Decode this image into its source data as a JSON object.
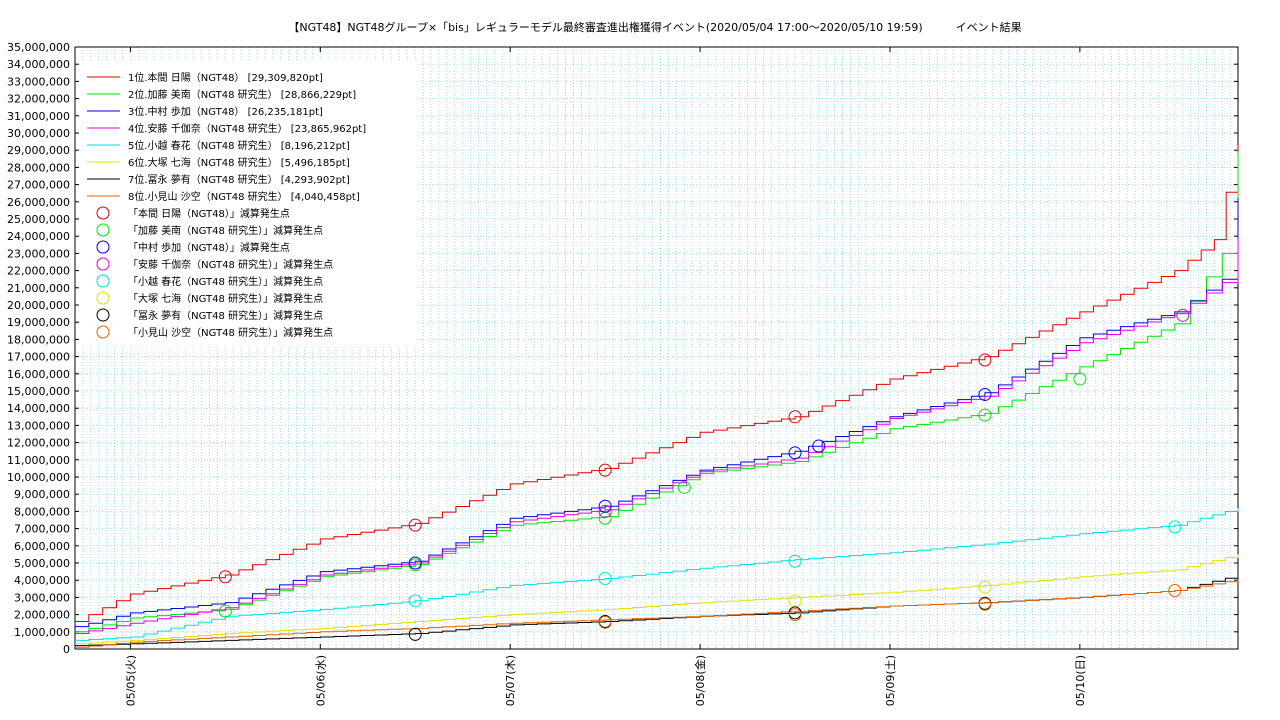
{
  "chart_data": {
    "type": "line",
    "title": "【NGT48】NGT48グループ×「bis」レギュラーモデル最終審査進出権獲得イベント(2020/05/04 17:00～2020/05/10 19:59)　　　イベント結果",
    "xlabel": "",
    "ylabel": "",
    "grid": true,
    "legend_position": "top-left",
    "ylim": [
      0,
      35000000
    ],
    "xlim": [
      "2020-05-04 17:00",
      "2020-05-10 19:59"
    ],
    "y_ticks": [
      "0",
      "1,000,000",
      "2,000,000",
      "3,000,000",
      "4,000,000",
      "5,000,000",
      "6,000,000",
      "7,000,000",
      "8,000,000",
      "9,000,000",
      "10,000,000",
      "11,000,000",
      "12,000,000",
      "13,000,000",
      "14,000,000",
      "15,000,000",
      "16,000,000",
      "17,000,000",
      "18,000,000",
      "19,000,000",
      "20,000,000",
      "21,000,000",
      "22,000,000",
      "23,000,000",
      "24,000,000",
      "25,000,000",
      "26,000,000",
      "27,000,000",
      "28,000,000",
      "29,000,000",
      "30,000,000",
      "31,000,000",
      "32,000,000",
      "33,000,000",
      "34,000,000",
      "35,000,000"
    ],
    "x_ticks": [
      {
        "label": "05/05(火)",
        "t": "2020-05-05 00:00"
      },
      {
        "label": "05/06(水)",
        "t": "2020-05-06 00:00"
      },
      {
        "label": "05/07(木)",
        "t": "2020-05-07 00:00"
      },
      {
        "label": "05/08(金)",
        "t": "2020-05-08 00:00"
      },
      {
        "label": "05/09(土)",
        "t": "2020-05-09 00:00"
      },
      {
        "label": "05/10(日)",
        "t": "2020-05-10 00:00"
      }
    ],
    "series": [
      {
        "name": "1位.本間 日陽（NGT48） [29,309,820pt]",
        "color": "#e00000",
        "points": [
          [
            "2020-05-04 17:00",
            1600000
          ],
          [
            "2020-05-05 00:00",
            3200000
          ],
          [
            "2020-05-05 12:00",
            4300000
          ],
          [
            "2020-05-06 00:00",
            6400000
          ],
          [
            "2020-05-06 12:00",
            7300000
          ],
          [
            "2020-05-07 00:00",
            9600000
          ],
          [
            "2020-05-07 12:00",
            10500000
          ],
          [
            "2020-05-08 00:00",
            12600000
          ],
          [
            "2020-05-08 12:00",
            13500000
          ],
          [
            "2020-05-09 00:00",
            15700000
          ],
          [
            "2020-05-09 12:00",
            17000000
          ],
          [
            "2020-05-10 00:00",
            19600000
          ],
          [
            "2020-05-10 12:00",
            22000000
          ],
          [
            "2020-05-10 17:00",
            23800000
          ],
          [
            "2020-05-10 19:59",
            29309820
          ]
        ]
      },
      {
        "name": "2位.加藤 美南（NGT48 研究生） [28,866,229pt]",
        "color": "#00e000",
        "points": [
          [
            "2020-05-04 17:00",
            1000000
          ],
          [
            "2020-05-05 00:00",
            1800000
          ],
          [
            "2020-05-05 12:00",
            2300000
          ],
          [
            "2020-05-06 00:00",
            4200000
          ],
          [
            "2020-05-06 12:00",
            4900000
          ],
          [
            "2020-05-07 00:00",
            7200000
          ],
          [
            "2020-05-07 12:00",
            7700000
          ],
          [
            "2020-05-08 00:00",
            10200000
          ],
          [
            "2020-05-08 12:00",
            10900000
          ],
          [
            "2020-05-09 00:00",
            12800000
          ],
          [
            "2020-05-09 12:00",
            13700000
          ],
          [
            "2020-05-10 00:00",
            16400000
          ],
          [
            "2020-05-10 12:00",
            18900000
          ],
          [
            "2020-05-10 18:00",
            23000000
          ],
          [
            "2020-05-10 19:59",
            28866229
          ]
        ]
      },
      {
        "name": "3位.中村 歩加（NGT48） [26,235,181pt]",
        "color": "#0000e0",
        "points": [
          [
            "2020-05-04 17:00",
            1300000
          ],
          [
            "2020-05-05 00:00",
            2100000
          ],
          [
            "2020-05-05 12:00",
            2700000
          ],
          [
            "2020-05-06 00:00",
            4500000
          ],
          [
            "2020-05-06 12:00",
            5100000
          ],
          [
            "2020-05-07 00:00",
            7600000
          ],
          [
            "2020-05-07 12:00",
            8300000
          ],
          [
            "2020-05-08 00:00",
            10400000
          ],
          [
            "2020-05-08 12:00",
            11500000
          ],
          [
            "2020-05-09 00:00",
            13500000
          ],
          [
            "2020-05-09 12:00",
            14900000
          ],
          [
            "2020-05-10 00:00",
            18100000
          ],
          [
            "2020-05-10 12:00",
            19600000
          ],
          [
            "2020-05-10 18:00",
            21500000
          ],
          [
            "2020-05-10 19:59",
            26235181
          ]
        ]
      },
      {
        "name": "4位.安藤 千伽奈（NGT48 研究生） [23,865,962pt]",
        "color": "#e000e0",
        "points": [
          [
            "2020-05-04 17:00",
            900000
          ],
          [
            "2020-05-05 00:00",
            1500000
          ],
          [
            "2020-05-05 12:00",
            2400000
          ],
          [
            "2020-05-06 00:00",
            4300000
          ],
          [
            "2020-05-06 12:00",
            5000000
          ],
          [
            "2020-05-07 00:00",
            7400000
          ],
          [
            "2020-05-07 12:00",
            8100000
          ],
          [
            "2020-05-08 00:00",
            10300000
          ],
          [
            "2020-05-08 12:00",
            11100000
          ],
          [
            "2020-05-09 00:00",
            13400000
          ],
          [
            "2020-05-09 12:00",
            14700000
          ],
          [
            "2020-05-10 00:00",
            17800000
          ],
          [
            "2020-05-10 12:00",
            19500000
          ],
          [
            "2020-05-10 18:00",
            21300000
          ],
          [
            "2020-05-10 19:59",
            23865962
          ]
        ]
      },
      {
        "name": "5位.小越 春花（NGT48 研究生） [8,196,212pt]",
        "color": "#00e0e0",
        "points": [
          [
            "2020-05-04 17:00",
            500000
          ],
          [
            "2020-05-05 00:00",
            700000
          ],
          [
            "2020-05-05 12:00",
            1900000
          ],
          [
            "2020-05-06 00:00",
            2300000
          ],
          [
            "2020-05-06 12:00",
            2800000
          ],
          [
            "2020-05-07 00:00",
            3700000
          ],
          [
            "2020-05-07 12:00",
            4100000
          ],
          [
            "2020-05-08 00:00",
            4700000
          ],
          [
            "2020-05-08 12:00",
            5200000
          ],
          [
            "2020-05-09 00:00",
            5600000
          ],
          [
            "2020-05-09 12:00",
            6100000
          ],
          [
            "2020-05-10 00:00",
            6700000
          ],
          [
            "2020-05-10 12:00",
            7200000
          ],
          [
            "2020-05-10 19:59",
            8196212
          ]
        ]
      },
      {
        "name": "6位.大塚 七海（NGT48 研究生） [5,496,185pt]",
        "color": "#e0e000",
        "points": [
          [
            "2020-05-04 17:00",
            300000
          ],
          [
            "2020-05-05 00:00",
            500000
          ],
          [
            "2020-05-05 12:00",
            900000
          ],
          [
            "2020-05-06 00:00",
            1200000
          ],
          [
            "2020-05-06 12:00",
            1600000
          ],
          [
            "2020-05-07 00:00",
            2000000
          ],
          [
            "2020-05-07 12:00",
            2300000
          ],
          [
            "2020-05-08 00:00",
            2700000
          ],
          [
            "2020-05-08 12:00",
            3000000
          ],
          [
            "2020-05-09 00:00",
            3300000
          ],
          [
            "2020-05-09 12:00",
            3700000
          ],
          [
            "2020-05-10 00:00",
            4200000
          ],
          [
            "2020-05-10 12:00",
            4600000
          ],
          [
            "2020-05-10 19:59",
            5496185
          ]
        ]
      },
      {
        "name": "7位.冨永 夢有（NGT48 研究生） [4,293,902pt]",
        "color": "#000000",
        "points": [
          [
            "2020-05-04 17:00",
            200000
          ],
          [
            "2020-05-05 00:00",
            300000
          ],
          [
            "2020-05-05 12:00",
            500000
          ],
          [
            "2020-05-06 00:00",
            700000
          ],
          [
            "2020-05-06 12:00",
            900000
          ],
          [
            "2020-05-07 00:00",
            1400000
          ],
          [
            "2020-05-07 12:00",
            1600000
          ],
          [
            "2020-05-08 00:00",
            1900000
          ],
          [
            "2020-05-08 12:00",
            2100000
          ],
          [
            "2020-05-09 00:00",
            2500000
          ],
          [
            "2020-05-09 12:00",
            2700000
          ],
          [
            "2020-05-10 00:00",
            3000000
          ],
          [
            "2020-05-10 12:00",
            3400000
          ],
          [
            "2020-05-10 19:59",
            4293902
          ]
        ]
      },
      {
        "name": "8位.小見山 沙空（NGT48 研究生） [4,040,458pt]",
        "color": "#e06000",
        "points": [
          [
            "2020-05-04 17:00",
            100000
          ],
          [
            "2020-05-05 00:00",
            400000
          ],
          [
            "2020-05-05 12:00",
            700000
          ],
          [
            "2020-05-06 00:00",
            1000000
          ],
          [
            "2020-05-06 12:00",
            1200000
          ],
          [
            "2020-05-07 00:00",
            1500000
          ],
          [
            "2020-05-07 12:00",
            1700000
          ],
          [
            "2020-05-08 00:00",
            1900000
          ],
          [
            "2020-05-08 12:00",
            2200000
          ],
          [
            "2020-05-09 00:00",
            2500000
          ],
          [
            "2020-05-09 12:00",
            2700000
          ],
          [
            "2020-05-10 00:00",
            3000000
          ],
          [
            "2020-05-10 12:00",
            3400000
          ],
          [
            "2020-05-10 19:59",
            4040458
          ]
        ]
      }
    ],
    "markers": [
      {
        "name": "「本間 日陽（NGT48）」減算発生点",
        "color": "#e00000",
        "points": [
          [
            "2020-05-05 12:00",
            4200000
          ],
          [
            "2020-05-06 12:00",
            7200000
          ],
          [
            "2020-05-07 12:00",
            10400000
          ],
          [
            "2020-05-08 12:00",
            13500000
          ],
          [
            "2020-05-09 12:00",
            16800000
          ]
        ]
      },
      {
        "name": "「加藤 美南（NGT48 研究生）」減算発生点",
        "color": "#00e000",
        "points": [
          [
            "2020-05-05 12:00",
            2200000
          ],
          [
            "2020-05-06 12:00",
            4900000
          ],
          [
            "2020-05-07 12:00",
            7600000
          ],
          [
            "2020-05-07 22:00",
            9400000
          ],
          [
            "2020-05-09 12:00",
            13600000
          ],
          [
            "2020-05-10 00:00",
            15700000
          ]
        ]
      },
      {
        "name": "「中村 歩加（NGT48）」減算発生点",
        "color": "#0000e0",
        "points": [
          [
            "2020-05-06 12:00",
            5000000
          ],
          [
            "2020-05-07 12:00",
            8300000
          ],
          [
            "2020-05-08 12:00",
            11400000
          ],
          [
            "2020-05-08 15:00",
            11800000
          ],
          [
            "2020-05-09 12:00",
            14800000
          ]
        ]
      },
      {
        "name": "「安藤 千伽奈（NGT48 研究生）」減算発生点",
        "color": "#e000e0",
        "points": [
          [
            "2020-05-07 12:00",
            8000000
          ],
          [
            "2020-05-10 13:00",
            19400000
          ]
        ]
      },
      {
        "name": "「小越 春花（NGT48 研究生）」減算発生点",
        "color": "#00e0e0",
        "points": [
          [
            "2020-05-06 12:00",
            2800000
          ],
          [
            "2020-05-07 12:00",
            4100000
          ],
          [
            "2020-05-08 12:00",
            5100000
          ],
          [
            "2020-05-10 12:00",
            7100000
          ]
        ]
      },
      {
        "name": "「大塚 七海（NGT48 研究生）」減算発生点",
        "color": "#e0e000",
        "points": [
          [
            "2020-05-08 12:00",
            2800000
          ],
          [
            "2020-05-09 12:00",
            3600000
          ]
        ]
      },
      {
        "name": "「冨永 夢有（NGT48 研究生）」減算発生点",
        "color": "#000000",
        "points": [
          [
            "2020-05-06 12:00",
            850000
          ],
          [
            "2020-05-07 12:00",
            1600000
          ],
          [
            "2020-05-08 12:00",
            2100000
          ],
          [
            "2020-05-09 12:00",
            2650000
          ]
        ]
      },
      {
        "name": "「小見山 沙空（NGT48 研究生）」減算発生点",
        "color": "#e06000",
        "points": [
          [
            "2020-05-07 12:00",
            1550000
          ],
          [
            "2020-05-08 12:00",
            2000000
          ],
          [
            "2020-05-09 12:00",
            2600000
          ],
          [
            "2020-05-10 12:00",
            3400000
          ]
        ]
      }
    ]
  }
}
